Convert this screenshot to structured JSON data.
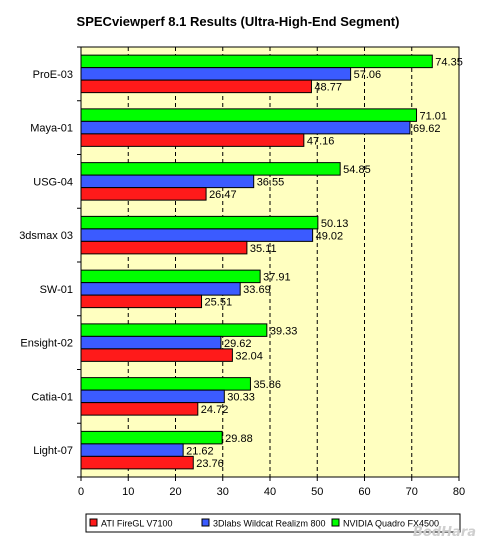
{
  "chart_data": {
    "type": "bar",
    "orientation": "horizontal",
    "title": "SPECviewperf 8.1 Results (Ultra-High-End Segment)",
    "categories": [
      "ProE-03",
      "Maya-01",
      "USG-04",
      "3dsmax 03",
      "SW-01",
      "Ensight-02",
      "Catia-01",
      "Light-07"
    ],
    "series": [
      {
        "name": "NVIDIA Quadro FX4500",
        "color": "#00ff00",
        "values": [
          74.35,
          71.01,
          54.85,
          50.13,
          37.91,
          39.33,
          35.86,
          29.88
        ],
        "labels": [
          "74.35",
          "71.01",
          "54.85",
          "50.13",
          "37.91",
          "39.33",
          "35.86",
          "29.88"
        ]
      },
      {
        "name": "3Dlabs Wildcat Realizm 800",
        "color": "#3b5bff",
        "values": [
          57.06,
          69.62,
          36.55,
          49.02,
          33.69,
          29.62,
          30.33,
          21.62
        ],
        "labels": [
          "57.06",
          "69.62",
          "36.55",
          "49.02",
          "33.69",
          "29.62",
          "30.33",
          "21.62"
        ]
      },
      {
        "name": "ATI FireGL V7100",
        "color": "#ff1a1a",
        "values": [
          48.77,
          47.16,
          26.47,
          35.11,
          25.51,
          32.04,
          24.72,
          23.76
        ],
        "labels": [
          "48.77",
          "47.16",
          "26.47",
          "35.11",
          "25.51",
          "32.04",
          "24.72",
          "23.76"
        ]
      }
    ],
    "legend_order": [
      "ATI FireGL V7100",
      "3Dlabs Wildcat Realizm 800",
      "NVIDIA Quadro FX4500"
    ],
    "xlim": [
      0,
      80
    ],
    "xticks": [
      0,
      10,
      20,
      30,
      40,
      50,
      60,
      70,
      80
    ],
    "grid": "vertical dashed",
    "plot_background": "#ffffc0",
    "legend_position": "bottom",
    "watermark": "BodHara"
  }
}
